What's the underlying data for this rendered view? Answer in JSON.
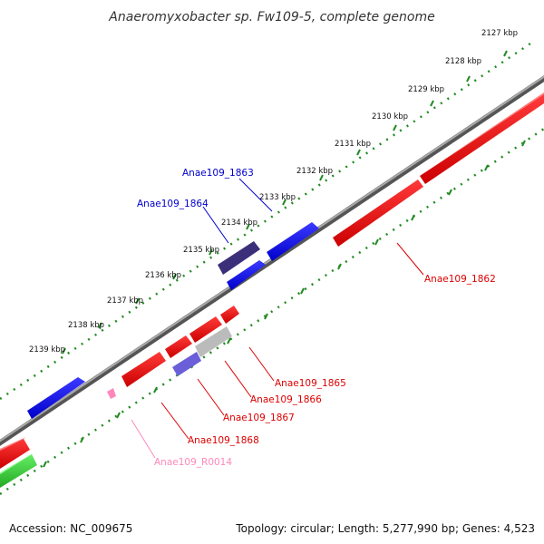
{
  "title": "Anaeromyxobacter sp. Fw109-5, complete genome",
  "footer": {
    "accession": "Accession: NC_009675",
    "summary": "Topology: circular; Length: 5,277,990 bp; Genes: 4,523"
  },
  "colors": {
    "backbone": "#808080",
    "tick": "#228b22",
    "forward_gene": "#0000ee",
    "reverse_gene": "#ee0000",
    "highlight_forward": "#3b2f7a",
    "pseudo_gene": "#bbbbbb",
    "rna_gene": "#ff88bb",
    "green_gene": "#33cc33"
  },
  "ticks": [
    {
      "label": "2127 kbp"
    },
    {
      "label": "2128 kbp"
    },
    {
      "label": "2129 kbp"
    },
    {
      "label": "2130 kbp"
    },
    {
      "label": "2131 kbp"
    },
    {
      "label": "2132 kbp"
    },
    {
      "label": "2133 kbp"
    },
    {
      "label": "2134 kbp"
    },
    {
      "label": "2135 kbp"
    },
    {
      "label": "2136 kbp"
    },
    {
      "label": "2137 kbp"
    },
    {
      "label": "2138 kbp"
    },
    {
      "label": "2139 kbp"
    }
  ],
  "gene_labels": [
    {
      "name": "Anae109_1863",
      "color": "#0000cc"
    },
    {
      "name": "Anae109_1864",
      "color": "#0000cc"
    },
    {
      "name": "Anae109_1862",
      "color": "#dd0000"
    },
    {
      "name": "Anae109_1865",
      "color": "#dd0000"
    },
    {
      "name": "Anae109_1866",
      "color": "#dd0000"
    },
    {
      "name": "Anae109_1867",
      "color": "#dd0000"
    },
    {
      "name": "Anae109_1868",
      "color": "#dd0000"
    },
    {
      "name": "Anae109_R0014",
      "color": "#ff88bb"
    }
  ]
}
